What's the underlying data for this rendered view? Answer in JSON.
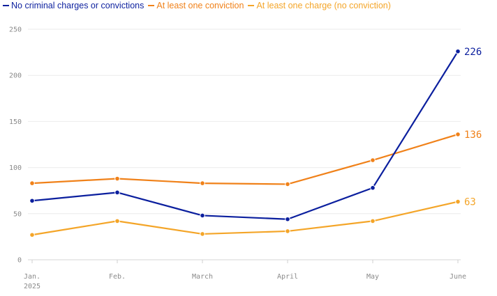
{
  "chart_data": {
    "type": "line",
    "categories": [
      "Jan.",
      "Feb.",
      "March",
      "April",
      "May",
      "June"
    ],
    "year_label": "2025",
    "y_ticks": [
      "0",
      "50",
      "100",
      "150",
      "200",
      "250"
    ],
    "ylim": [
      0,
      250
    ],
    "grid": true,
    "legend_position": "top-left",
    "series": [
      {
        "name": "No criminal charges or convictions",
        "color": "#0b1f9e",
        "values": [
          64,
          73,
          48,
          44,
          78,
          226
        ],
        "end_label": "226"
      },
      {
        "name": "At least one conviction",
        "color": "#f08119",
        "values": [
          83,
          88,
          83,
          82,
          108,
          136
        ],
        "end_label": "136"
      },
      {
        "name": "At least one charge (no conviction)",
        "color": "#f4a528",
        "values": [
          27,
          42,
          28,
          31,
          42,
          63
        ],
        "end_label": "63"
      }
    ]
  }
}
